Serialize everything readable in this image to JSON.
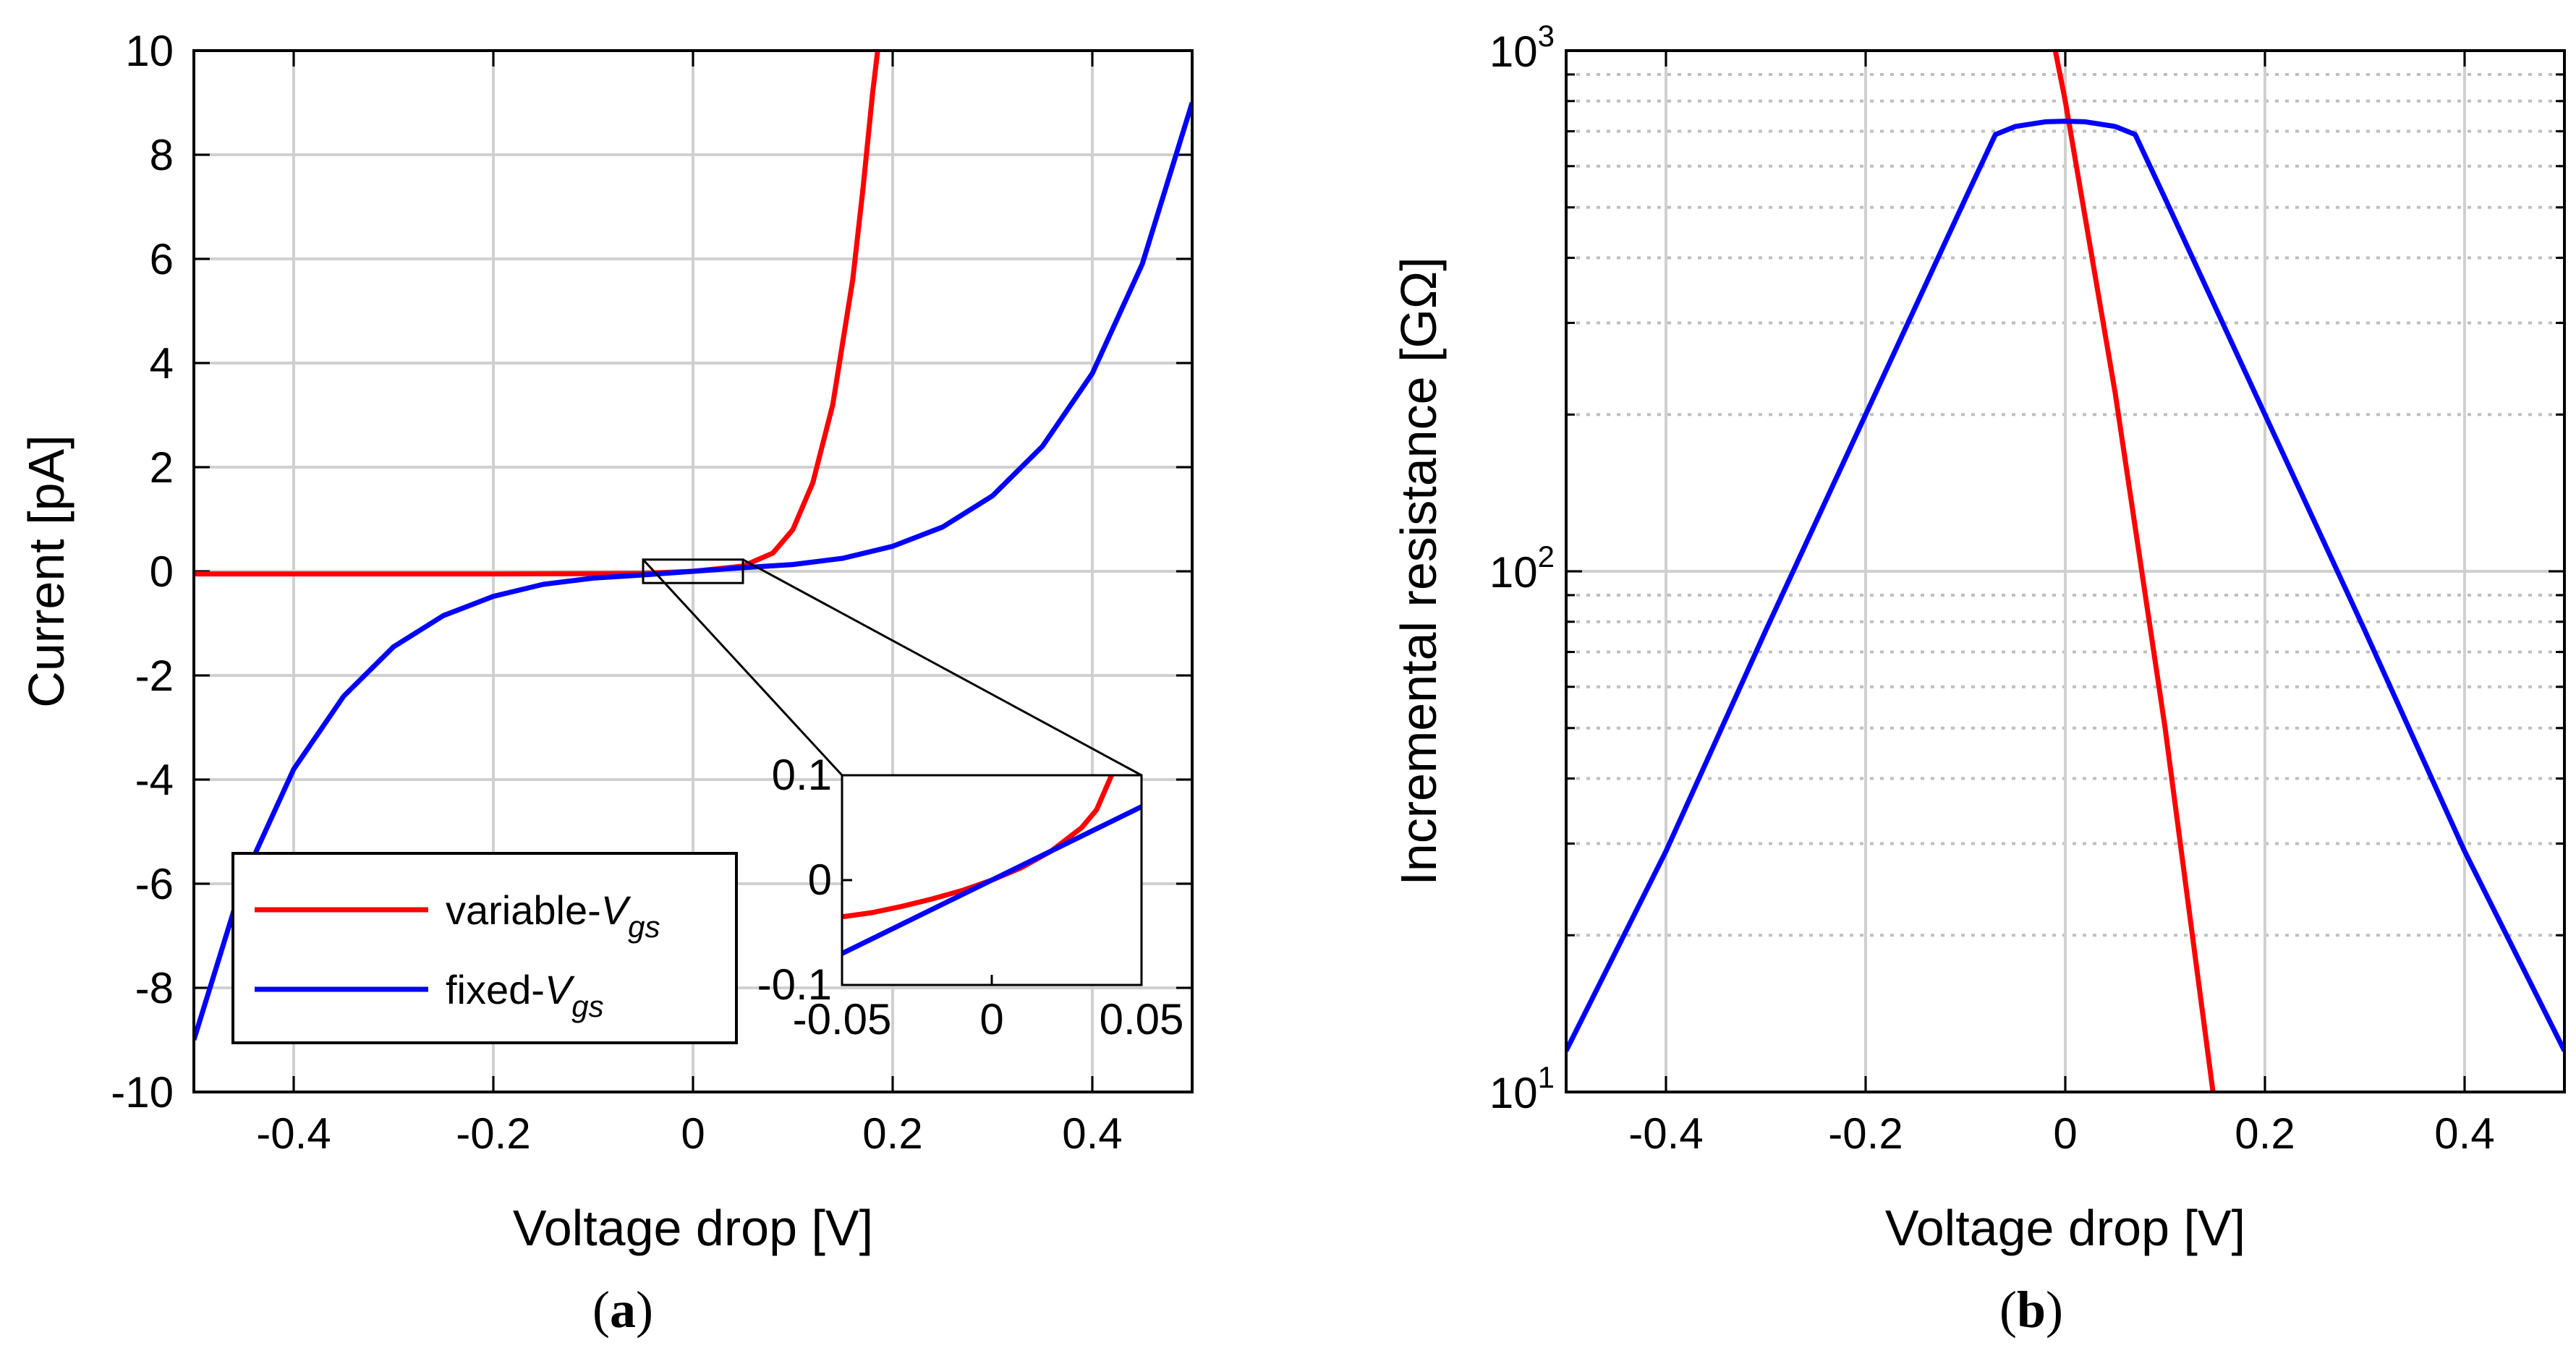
{
  "chart_data": [
    {
      "panel": "a",
      "caption_label": "a",
      "type": "line",
      "xlabel": "Voltage drop [V]",
      "ylabel": "Current [pA]",
      "xlim": [
        -0.5,
        0.5
      ],
      "ylim": [
        -10,
        10
      ],
      "xticks": [
        -0.4,
        -0.2,
        0,
        0.2,
        0.4
      ],
      "xtick_labels": [
        "-0.4",
        "-0.2",
        "0",
        "0.2",
        "0.4"
      ],
      "yticks": [
        -10,
        -8,
        -6,
        -4,
        -2,
        0,
        2,
        4,
        6,
        8,
        10
      ],
      "ytick_labels": [
        "-10",
        "-8",
        "-6",
        "-4",
        "-2",
        "0",
        "2",
        "4",
        "6",
        "8",
        "10"
      ],
      "grid": true,
      "legend_position": "bottom-left",
      "series": [
        {
          "name": "variable-V_gs",
          "legend_main": "variable-",
          "legend_sym": "V",
          "legend_sub": "gs",
          "color": "#ff0000",
          "x": [
            -0.5,
            -0.4,
            -0.3,
            -0.2,
            -0.1,
            -0.05,
            0,
            0.05,
            0.08,
            0.1,
            0.12,
            0.14,
            0.16,
            0.17,
            0.18,
            0.185
          ],
          "y": [
            -0.05,
            -0.05,
            -0.05,
            -0.05,
            -0.045,
            -0.04,
            0,
            0.1,
            0.35,
            0.8,
            1.7,
            3.2,
            5.6,
            7.3,
            9.2,
            10
          ]
        },
        {
          "name": "fixed-V_gs",
          "legend_main": "fixed-",
          "legend_sym": "V",
          "legend_sub": "gs",
          "color": "#0000ff",
          "x": [
            -0.5,
            -0.45,
            -0.4,
            -0.35,
            -0.3,
            -0.25,
            -0.2,
            -0.15,
            -0.1,
            -0.05,
            0,
            0.05,
            0.1,
            0.15,
            0.2,
            0.25,
            0.3,
            0.35,
            0.4,
            0.45,
            0.5
          ],
          "y": [
            -9.0,
            -5.9,
            -3.8,
            -2.4,
            -1.45,
            -0.85,
            -0.48,
            -0.25,
            -0.13,
            -0.07,
            0,
            0.07,
            0.13,
            0.25,
            0.48,
            0.85,
            1.45,
            2.4,
            3.8,
            5.9,
            9.0
          ]
        }
      ],
      "inset": {
        "xlim": [
          -0.05,
          0.05
        ],
        "ylim": [
          -0.1,
          0.1
        ],
        "xticks": [
          -0.05,
          0,
          0.05
        ],
        "xtick_labels": [
          "-0.05",
          "0",
          "0.05"
        ],
        "yticks": [
          -0.1,
          0,
          0.1
        ],
        "ytick_labels": [
          "-0.1",
          "0",
          "0.1"
        ],
        "zoom_box": {
          "x": [
            -0.05,
            0.05
          ],
          "y": [
            -0.1,
            0.1
          ]
        },
        "series": [
          {
            "name": "variable-V_gs",
            "color": "#ff0000",
            "x": [
              -0.05,
              -0.04,
              -0.03,
              -0.02,
              -0.01,
              0,
              0.01,
              0.02,
              0.03,
              0.035,
              0.04
            ],
            "y": [
              -0.035,
              -0.031,
              -0.025,
              -0.018,
              -0.01,
              0,
              0.012,
              0.028,
              0.05,
              0.067,
              0.1
            ]
          },
          {
            "name": "fixed-V_gs",
            "color": "#0000ff",
            "x": [
              -0.05,
              0,
              0.05
            ],
            "y": [
              -0.07,
              0,
              0.07
            ]
          }
        ]
      }
    },
    {
      "panel": "b",
      "caption_label": "b",
      "type": "line",
      "yscale": "log",
      "xlabel": "Voltage drop [V]",
      "ylabel": "Incremental resistance [GΩ]",
      "xlim": [
        -0.5,
        0.5
      ],
      "ylim": [
        10,
        1000
      ],
      "xticks": [
        -0.4,
        -0.2,
        0,
        0.2,
        0.4
      ],
      "xtick_labels": [
        "-0.4",
        "-0.2",
        "0",
        "0.2",
        "0.4"
      ],
      "ytick_labels": [
        {
          "value": 10,
          "base": "10",
          "exp": "1"
        },
        {
          "value": 100,
          "base": "10",
          "exp": "2"
        },
        {
          "value": 1000,
          "base": "10",
          "exp": "3"
        }
      ],
      "grid": true,
      "series": [
        {
          "name": "variable-V_gs",
          "color": "#ff0000",
          "x": [
            -0.01,
            0,
            0.05,
            0.1,
            0.148
          ],
          "y": [
            1000,
            800,
            220,
            50,
            10
          ]
        },
        {
          "name": "fixed-V_gs",
          "color": "#0000ff",
          "x": [
            -0.5,
            -0.4,
            -0.3,
            -0.2,
            -0.1,
            -0.07,
            -0.05,
            -0.02,
            0,
            0.02,
            0.05,
            0.07,
            0.1,
            0.2,
            0.3,
            0.4,
            0.5
          ],
          "y": [
            12,
            29,
            77,
            200,
            520,
            690,
            715,
            730,
            732,
            730,
            715,
            690,
            520,
            200,
            77,
            29,
            12
          ]
        }
      ]
    }
  ]
}
